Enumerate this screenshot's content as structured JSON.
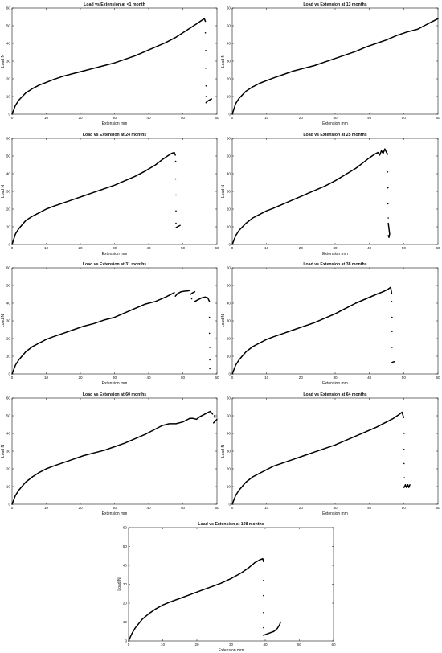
{
  "chart_data": [
    {
      "type": "line",
      "title": "Load vs Extension at <1 month",
      "xlabel": "Extension mm",
      "ylabel": "Load N",
      "xlim": [
        0,
        60
      ],
      "ylim": [
        0,
        60
      ],
      "xticks": [
        "0",
        "10",
        "20",
        "30",
        "40",
        "50",
        "60"
      ],
      "yticks": [
        "0",
        "10",
        "20",
        "30",
        "40",
        "50",
        "60"
      ],
      "grid": false,
      "series": [
        {
          "x": [
            0,
            1,
            2,
            4,
            6,
            8,
            10,
            12,
            15,
            18,
            21,
            24,
            27,
            30,
            33,
            36,
            39,
            42,
            45,
            48,
            50,
            52,
            54,
            55.5,
            56.3,
            56.6
          ],
          "y": [
            0,
            5,
            8,
            12,
            14.5,
            16.5,
            18,
            19.5,
            21.5,
            23,
            24.5,
            26,
            27.5,
            29,
            31,
            33,
            35.5,
            38,
            40.5,
            43.5,
            46,
            48.5,
            51,
            53,
            54,
            52.5
          ]
        },
        {
          "x": [
            56.8,
            57.2,
            57.6,
            58,
            58.4
          ],
          "y": [
            6.5,
            7.3,
            7.8,
            8.2,
            8.6
          ]
        }
      ],
      "scatter": [
        {
          "x": [
            56.6,
            56.7,
            56.7,
            56.8,
            56.8
          ],
          "y": [
            46,
            36,
            26,
            16,
            10
          ]
        }
      ]
    },
    {
      "type": "line",
      "title": "Load vs Extension at 13 months",
      "xlabel": "Extension mm",
      "ylabel": "Load N",
      "xlim": [
        0,
        60
      ],
      "ylim": [
        0,
        60
      ],
      "xticks": [
        "0",
        "10",
        "20",
        "30",
        "40",
        "50",
        "60"
      ],
      "yticks": [
        "0",
        "10",
        "20",
        "30",
        "40",
        "50",
        "60"
      ],
      "grid": false,
      "series": [
        {
          "x": [
            0,
            1,
            2,
            4,
            6,
            8,
            10,
            12,
            15,
            18,
            21,
            24,
            27,
            30,
            33,
            36,
            39,
            42,
            45,
            48,
            51,
            54,
            56,
            58,
            59.5,
            60
          ],
          "y": [
            0,
            6,
            9,
            13,
            15.5,
            17.5,
            19,
            20.5,
            22.5,
            24.5,
            26,
            27.5,
            29.5,
            31.5,
            33.5,
            35.5,
            38,
            40,
            42,
            44.5,
            46.5,
            48,
            50,
            52,
            53.5,
            54
          ]
        }
      ],
      "scatter": []
    },
    {
      "type": "line",
      "title": "Load vs Extension at 24 months",
      "xlabel": "Extension mm",
      "ylabel": "Load N",
      "xlim": [
        0,
        60
      ],
      "ylim": [
        0,
        60
      ],
      "xticks": [
        "0",
        "10",
        "20",
        "30",
        "40",
        "50",
        "60"
      ],
      "yticks": [
        "0",
        "10",
        "20",
        "30",
        "40",
        "50",
        "60"
      ],
      "grid": false,
      "series": [
        {
          "x": [
            0,
            1,
            2,
            4,
            6,
            8,
            10,
            12,
            15,
            18,
            21,
            24,
            27,
            30,
            33,
            36,
            39,
            42,
            44,
            45.5,
            46.7,
            47.5,
            47.8
          ],
          "y": [
            0,
            6,
            9,
            13.5,
            16,
            18,
            20,
            21.5,
            23.5,
            25.5,
            27.5,
            29.5,
            31.5,
            33.5,
            36,
            38.5,
            41.5,
            45,
            48,
            50,
            51.5,
            52,
            50.5
          ]
        },
        {
          "x": [
            48,
            48.4,
            48.8,
            49.2
          ],
          "y": [
            9.5,
            10,
            10.4,
            10.8
          ]
        }
      ],
      "scatter": [
        {
          "x": [
            47.9,
            47.9,
            48,
            48,
            48
          ],
          "y": [
            47,
            37,
            28,
            19,
            12
          ]
        }
      ]
    },
    {
      "type": "line",
      "title": "Load vs Extension at 25 months",
      "xlabel": "Extension mm",
      "ylabel": "Load N",
      "xlim": [
        0,
        60
      ],
      "ylim": [
        0,
        60
      ],
      "xticks": [
        "0",
        "10",
        "20",
        "30",
        "40",
        "50",
        "60"
      ],
      "yticks": [
        "0",
        "10",
        "20",
        "30",
        "40",
        "50",
        "60"
      ],
      "grid": false,
      "series": [
        {
          "x": [
            0,
            1,
            2,
            4,
            6,
            8,
            10,
            12,
            15,
            18,
            21,
            24,
            27,
            30,
            33,
            36,
            38,
            40,
            41.5,
            42.5,
            43,
            43.5,
            44,
            44.5,
            45,
            45.3
          ],
          "y": [
            0,
            5,
            8,
            12,
            15,
            17,
            19,
            20.5,
            23,
            25.5,
            28,
            30.5,
            33,
            36,
            39.5,
            43,
            46,
            49,
            51,
            52,
            50.5,
            53,
            51.5,
            54,
            52,
            51
          ]
        },
        {
          "x": [
            45.5,
            45.7,
            45.9,
            45.7,
            45.5
          ],
          "y": [
            12,
            9,
            6,
            4,
            5
          ]
        }
      ],
      "scatter": [
        {
          "x": [
            45.3,
            45.4,
            45.4,
            45.5
          ],
          "y": [
            41,
            32,
            23,
            15
          ]
        }
      ]
    },
    {
      "type": "line",
      "title": "Load vs Extension at 31 months",
      "xlabel": "Extension mm",
      "ylabel": "Load N",
      "xlim": [
        0,
        60
      ],
      "ylim": [
        0,
        60
      ],
      "xticks": [
        "0",
        "10",
        "20",
        "30",
        "40",
        "50",
        "60"
      ],
      "yticks": [
        "0",
        "10",
        "20",
        "30",
        "40",
        "50",
        "60"
      ],
      "grid": false,
      "series": [
        {
          "x": [
            0,
            1,
            2,
            4,
            6,
            8,
            10,
            12,
            15,
            18,
            21,
            24,
            27,
            30,
            33,
            36,
            39,
            42,
            45,
            47.5
          ],
          "y": [
            0,
            5,
            8,
            12.5,
            15.5,
            17.5,
            19.5,
            21,
            23,
            25,
            27,
            28.5,
            30.5,
            32,
            34.5,
            37,
            39.5,
            41,
            43.5,
            46
          ]
        },
        {
          "x": [
            47.8,
            48.5,
            49.5,
            50.5,
            51.5,
            52
          ],
          "y": [
            44,
            45.5,
            46.5,
            46.8,
            47,
            47.2
          ]
        },
        {
          "x": [
            52.2,
            53,
            53.5
          ],
          "y": [
            45,
            46,
            46.5
          ]
        },
        {
          "x": [
            53.5,
            54.5,
            55.5,
            56.5,
            57.3,
            57.8
          ],
          "y": [
            41,
            42,
            43,
            43.5,
            43,
            41
          ]
        }
      ],
      "scatter": [
        {
          "x": [
            52.6,
            57.8,
            57.8,
            57.9,
            57.9,
            57.9
          ],
          "y": [
            42.5,
            32,
            23,
            15,
            8,
            3
          ]
        }
      ]
    },
    {
      "type": "line",
      "title": "Load vs Extension at 38 months",
      "xlabel": "Extension mm",
      "ylabel": "Load N",
      "xlim": [
        0,
        60
      ],
      "ylim": [
        0,
        60
      ],
      "xticks": [
        "0",
        "10",
        "20",
        "30",
        "40",
        "50",
        "60"
      ],
      "yticks": [
        "0",
        "10",
        "20",
        "30",
        "40",
        "50",
        "60"
      ],
      "grid": false,
      "series": [
        {
          "x": [
            0,
            1,
            2,
            4,
            6,
            8,
            10,
            12,
            15,
            18,
            21,
            24,
            27,
            30,
            33,
            36,
            39,
            42,
            44,
            45.5,
            46.2,
            46.5
          ],
          "y": [
            0,
            5,
            8,
            12.5,
            15.5,
            17.5,
            19.5,
            21,
            23,
            25,
            27,
            29,
            31.5,
            34,
            37,
            40,
            42.5,
            45,
            46.5,
            48,
            49,
            45.5
          ]
        },
        {
          "x": [
            46.6,
            47,
            47.4
          ],
          "y": [
            6.5,
            6.8,
            7
          ]
        }
      ],
      "scatter": [
        {
          "x": [
            46.5,
            46.6,
            46.6,
            46.6
          ],
          "y": [
            41,
            32,
            24,
            15
          ]
        }
      ]
    },
    {
      "type": "line",
      "title": "Load vs Extension at 60 months",
      "xlabel": "Extension mm",
      "ylabel": "Load N",
      "xlim": [
        0,
        60
      ],
      "ylim": [
        0,
        60
      ],
      "xticks": [
        "0",
        "10",
        "20",
        "30",
        "40",
        "50",
        "60"
      ],
      "yticks": [
        "0",
        "10",
        "20",
        "30",
        "40",
        "50",
        "60"
      ],
      "grid": false,
      "series": [
        {
          "x": [
            0,
            1,
            2,
            4,
            6,
            8,
            10,
            12,
            15,
            18,
            21,
            24,
            27,
            30,
            33,
            36,
            39,
            42,
            44,
            46,
            48,
            50,
            51,
            52,
            53,
            54,
            55,
            56,
            57,
            58,
            58.7
          ],
          "y": [
            0,
            5,
            8,
            12.5,
            15.5,
            18,
            20,
            21.5,
            23.5,
            25.5,
            27.5,
            29,
            30.5,
            32.5,
            34.5,
            37,
            39.5,
            42.5,
            44.5,
            45.5,
            45.5,
            46.5,
            47.5,
            48.5,
            48.5,
            48,
            49.5,
            50.5,
            51.5,
            52.5,
            51
          ]
        },
        {
          "x": [
            59,
            59.5,
            60
          ],
          "y": [
            46,
            47,
            48
          ]
        }
      ],
      "scatter": [
        {
          "x": [
            59.2,
            59.4
          ],
          "y": [
            50,
            49
          ]
        }
      ]
    },
    {
      "type": "line",
      "title": "Load vs Extension at 64 months",
      "xlabel": "Extension mm",
      "ylabel": "Load N",
      "xlim": [
        0,
        60
      ],
      "ylim": [
        0,
        60
      ],
      "xticks": [
        "0",
        "10",
        "20",
        "30",
        "40",
        "50",
        "60"
      ],
      "yticks": [
        "0",
        "10",
        "20",
        "30",
        "40",
        "50",
        "60"
      ],
      "grid": false,
      "series": [
        {
          "x": [
            0,
            1,
            2,
            4,
            6,
            8,
            10,
            12,
            15,
            18,
            21,
            24,
            27,
            30,
            33,
            36,
            39,
            42,
            45,
            47,
            48.5,
            49.5,
            50
          ],
          "y": [
            0,
            5,
            8,
            12.5,
            15.5,
            17.5,
            19.5,
            21.5,
            23.5,
            25.5,
            27.5,
            29.5,
            31.5,
            33.5,
            36,
            38.5,
            41,
            43.5,
            46.5,
            48.5,
            50.5,
            52,
            49
          ]
        },
        {
          "x": [
            50.1,
            50.5,
            50.8,
            51.2,
            51.5,
            51.8
          ],
          "y": [
            9.5,
            11,
            9.5,
            11,
            9.5,
            11
          ]
        }
      ],
      "scatter": [
        {
          "x": [
            50.1,
            50.1,
            50.1,
            50.2
          ],
          "y": [
            40,
            31,
            23,
            15
          ]
        }
      ]
    },
    {
      "type": "line",
      "title": "Load vs Extension at 108 months",
      "xlabel": "Extension mm",
      "ylabel": "Load N",
      "xlim": [
        0,
        60
      ],
      "ylim": [
        0,
        60
      ],
      "xticks": [
        "0",
        "10",
        "20",
        "30",
        "40",
        "50",
        "60"
      ],
      "yticks": [
        "0",
        "10",
        "20",
        "30",
        "40",
        "50",
        "60"
      ],
      "grid": false,
      "series": [
        {
          "x": [
            0,
            1,
            2,
            4,
            6,
            8,
            10,
            12,
            15,
            18,
            21,
            24,
            27,
            30,
            33,
            35,
            37,
            38.5,
            39.3,
            39.5
          ],
          "y": [
            0,
            4,
            7,
            11.5,
            14.5,
            17,
            19,
            20.5,
            22.5,
            24.5,
            26.5,
            28.5,
            30.5,
            33,
            36,
            38.5,
            41.5,
            43,
            43.5,
            42
          ]
        },
        {
          "x": [
            39.5,
            41,
            42.5,
            43.5,
            44.2,
            44.5
          ],
          "y": [
            3,
            4,
            5,
            6.5,
            8.5,
            10
          ]
        }
      ],
      "scatter": [
        {
          "x": [
            39.5,
            39.5,
            39.5,
            39.5
          ],
          "y": [
            32,
            24,
            15,
            7
          ]
        }
      ]
    }
  ]
}
